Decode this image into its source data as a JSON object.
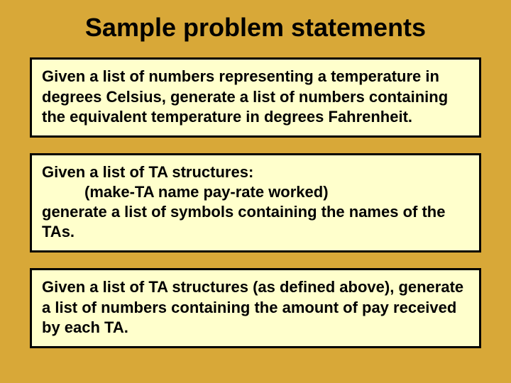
{
  "slide": {
    "background_color": "#d8a838",
    "title": "Sample problem statements",
    "title_fontsize": 36,
    "title_color": "#000000",
    "boxes": [
      {
        "background_color": "#ffffcc",
        "border_color": "#000000",
        "border_width": 3,
        "fontsize": 22,
        "text_color": "#000000",
        "lines": {
          "full": "Given a list of numbers representing a temperature in degrees Celsius, generate a list of numbers containing the equivalent temperature in degrees Fahrenheit."
        }
      },
      {
        "background_color": "#ffffcc",
        "border_color": "#000000",
        "border_width": 3,
        "fontsize": 22,
        "text_color": "#000000",
        "lines": {
          "l1": "Given a list of TA structures:",
          "l2": "(make-TA name pay-rate worked)",
          "l3": "generate a list of symbols containing the names of the TAs."
        }
      },
      {
        "background_color": "#ffffcc",
        "border_color": "#000000",
        "border_width": 3,
        "fontsize": 22,
        "text_color": "#000000",
        "lines": {
          "full": "Given a list of TA structures (as defined above), generate a list of numbers containing the amount of pay received by each TA."
        }
      }
    ]
  }
}
